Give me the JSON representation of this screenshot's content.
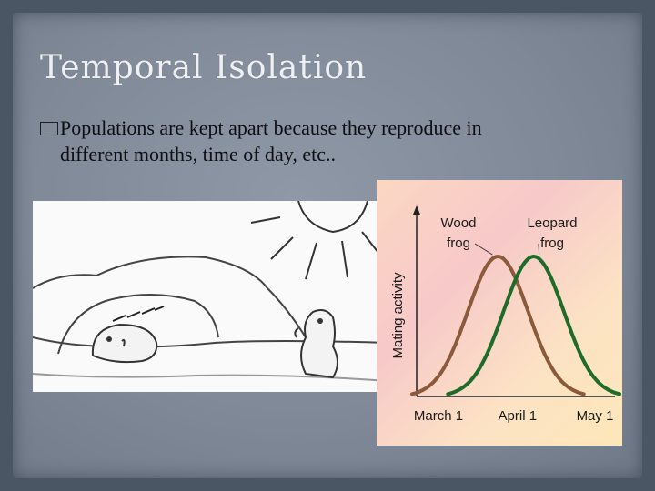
{
  "slide": {
    "title": "Temporal Isolation",
    "bullet_glyph": "square-bullet-icon",
    "bullet_text_line1": "Populations are kept apart because they reproduce in",
    "bullet_text_line2": "different months, time of day, etc.."
  },
  "colors": {
    "wood_frog": "#8a5a3a",
    "leopard_frog": "#1e6b2a",
    "title": "#eef0f2"
  },
  "chart_data": {
    "type": "line",
    "ylabel": "Mating activity",
    "x_tick_labels": [
      "March 1",
      "April 1",
      "May 1"
    ],
    "series": [
      {
        "name_line1": "Wood",
        "name_line2": "frog",
        "peak_day": 25,
        "spread": 12,
        "peak": 1.0
      },
      {
        "name_line1": "Leopard",
        "name_line2": "frog",
        "peak_day": 36,
        "spread": 12,
        "peak": 1.0
      }
    ],
    "xlim": [
      0,
      61
    ],
    "ylim": [
      0,
      1.0
    ]
  }
}
